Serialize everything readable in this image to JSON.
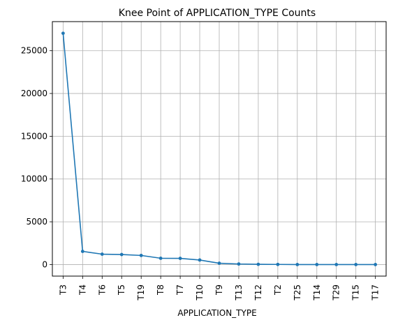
{
  "chart_data": {
    "type": "line",
    "title": "Knee Point of APPLICATION_TYPE Counts",
    "xlabel": "APPLICATION_TYPE",
    "ylabel": "",
    "categories": [
      "T3",
      "T4",
      "T6",
      "T5",
      "T19",
      "T8",
      "T7",
      "T10",
      "T9",
      "T13",
      "T12",
      "T2",
      "T25",
      "T14",
      "T29",
      "T15",
      "T17"
    ],
    "series": [
      {
        "values": [
          27037,
          1542,
          1216,
          1173,
          1065,
          737,
          725,
          528,
          156,
          66,
          27,
          16,
          3,
          3,
          2,
          1,
          1
        ]
      }
    ],
    "ylim": [
      -1350,
      28400
    ],
    "yticks": [
      0,
      5000,
      10000,
      15000,
      20000,
      25000
    ],
    "grid": true,
    "line_color": "#1f77b4"
  }
}
